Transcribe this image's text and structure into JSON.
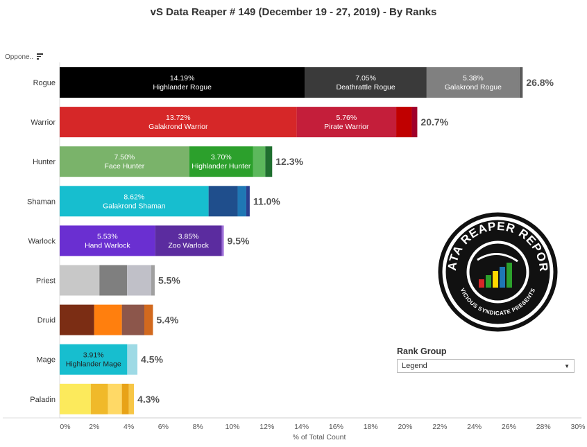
{
  "title": "vS Data Reaper #  149 (December 19 - 27, 2019) - By Ranks",
  "filter_label": "Oppone..",
  "sort_icon": "sort-descending-icon",
  "logo": {
    "line1": "DATA REAPER REPORT",
    "line2": "VICIOUS SYNDICATE PRESENTS"
  },
  "rank_group": {
    "title": "Rank Group",
    "selected": "Legend",
    "caret_icon": "chevron-down-icon"
  },
  "chart_data": {
    "type": "bar",
    "orientation": "horizontal-stacked",
    "title": "vS Data Reaper #  149 (December 19 - 27, 2019) - By Ranks",
    "xlabel": "% of Total Count",
    "xlim": [
      0,
      30
    ],
    "x_ticks": [
      "0%",
      "2%",
      "4%",
      "6%",
      "8%",
      "10%",
      "12%",
      "14%",
      "16%",
      "18%",
      "20%",
      "22%",
      "24%",
      "26%",
      "28%",
      "30%"
    ],
    "categories": [
      "Rogue",
      "Warrior",
      "Hunter",
      "Shaman",
      "Warlock",
      "Priest",
      "Druid",
      "Mage",
      "Paladin"
    ],
    "totals": [
      "26.8%",
      "20.7%",
      "12.3%",
      "11.0%",
      "9.5%",
      "5.5%",
      "5.4%",
      "4.5%",
      "4.3%"
    ],
    "rows": [
      {
        "class": "Rogue",
        "total": 26.8,
        "segments": [
          {
            "value": 14.19,
            "pct": "14.19%",
            "name": "Highlander Rogue",
            "color": "#000000"
          },
          {
            "value": 7.05,
            "pct": "7.05%",
            "name": "Deathrattle Rogue",
            "color": "#3a3a3a"
          },
          {
            "value": 5.38,
            "pct": "5.38%",
            "name": "Galakrond Rogue",
            "color": "#808080"
          },
          {
            "value": 0.18,
            "color": "#5a5a5a"
          }
        ]
      },
      {
        "class": "Warrior",
        "total": 20.7,
        "segments": [
          {
            "value": 13.72,
            "pct": "13.72%",
            "name": "Galakrond Warrior",
            "color": "#d62728"
          },
          {
            "value": 5.76,
            "pct": "5.76%",
            "name": "Pirate Warrior",
            "color": "#c41e3a"
          },
          {
            "value": 0.9,
            "color": "#c00000"
          },
          {
            "value": 0.32,
            "color": "#a0002a"
          }
        ]
      },
      {
        "class": "Hunter",
        "total": 12.3,
        "segments": [
          {
            "value": 7.5,
            "pct": "7.50%",
            "name": "Face Hunter",
            "color": "#7ab36a"
          },
          {
            "value": 3.7,
            "pct": "3.70%",
            "name": "Highlander Hunter",
            "color": "#2ca02c"
          },
          {
            "value": 0.7,
            "color": "#5cb85c"
          },
          {
            "value": 0.4,
            "color": "#1f6f2f"
          }
        ]
      },
      {
        "class": "Shaman",
        "total": 11.0,
        "segments": [
          {
            "value": 8.62,
            "pct": "8.62%",
            "name": "Galakrond Shaman",
            "color": "#17becf"
          },
          {
            "value": 1.68,
            "color": "#1f4e8c"
          },
          {
            "value": 0.5,
            "color": "#1f77b4"
          },
          {
            "value": 0.2,
            "color": "#2a3f8f"
          }
        ]
      },
      {
        "class": "Warlock",
        "total": 9.5,
        "segments": [
          {
            "value": 5.53,
            "pct": "5.53%",
            "name": "Hand Warlock",
            "color": "#6a2fd1"
          },
          {
            "value": 3.85,
            "pct": "3.85%",
            "name": "Zoo Warlock",
            "color": "#5b2c9f"
          },
          {
            "value": 0.12,
            "color": "#9b6bd6"
          }
        ]
      },
      {
        "class": "Priest",
        "total": 5.5,
        "segments": [
          {
            "value": 2.3,
            "color": "#c8c8c8"
          },
          {
            "value": 1.6,
            "color": "#7f7f7f"
          },
          {
            "value": 1.4,
            "color": "#c0c0c8"
          },
          {
            "value": 0.2,
            "color": "#a0a0a0"
          }
        ]
      },
      {
        "class": "Druid",
        "total": 5.4,
        "segments": [
          {
            "value": 2.0,
            "color": "#7b2d14"
          },
          {
            "value": 1.6,
            "color": "#ff7f0e"
          },
          {
            "value": 1.3,
            "color": "#8c564b"
          },
          {
            "value": 0.5,
            "color": "#d2691e"
          }
        ]
      },
      {
        "class": "Mage",
        "total": 4.5,
        "segments": [
          {
            "value": 3.91,
            "pct": "3.91%",
            "name": "Highlander Mage",
            "color": "#17becf",
            "dark_text": true
          },
          {
            "value": 0.59,
            "color": "#9edae5"
          }
        ]
      },
      {
        "class": "Paladin",
        "total": 4.3,
        "segments": [
          {
            "value": 1.8,
            "color": "#fcea5c"
          },
          {
            "value": 1.0,
            "color": "#f0b92a"
          },
          {
            "value": 0.8,
            "color": "#ffd966"
          },
          {
            "value": 0.4,
            "color": "#e8a317"
          },
          {
            "value": 0.3,
            "color": "#f7c646"
          }
        ]
      }
    ]
  }
}
